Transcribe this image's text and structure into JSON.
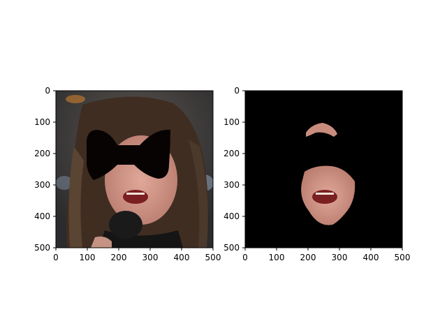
{
  "chart_data": [
    {
      "type": "image",
      "panel": "left",
      "content": "face photo with black eye-mask occlusion (long dark hair, microphone)",
      "xlim": [
        0,
        500
      ],
      "ylim": [
        500,
        0
      ],
      "xticks": [
        0,
        100,
        200,
        300,
        400,
        500
      ],
      "yticks": [
        0,
        100,
        200,
        300,
        400,
        500
      ],
      "title": "",
      "xlabel": "",
      "ylabel": ""
    },
    {
      "type": "image",
      "panel": "right",
      "content": "segmented skin mask on black background",
      "xlim": [
        0,
        500
      ],
      "ylim": [
        500,
        0
      ],
      "xticks": [
        0,
        100,
        200,
        300,
        400,
        500
      ],
      "yticks": [
        0,
        100,
        200,
        300,
        400,
        500
      ],
      "title": "",
      "xlabel": "",
      "ylabel": ""
    }
  ],
  "colors": {
    "mask": "#070303",
    "background_black": "#000000",
    "skin": "#c98d7d",
    "hair": "#3a2a20",
    "axis": "#000000"
  }
}
